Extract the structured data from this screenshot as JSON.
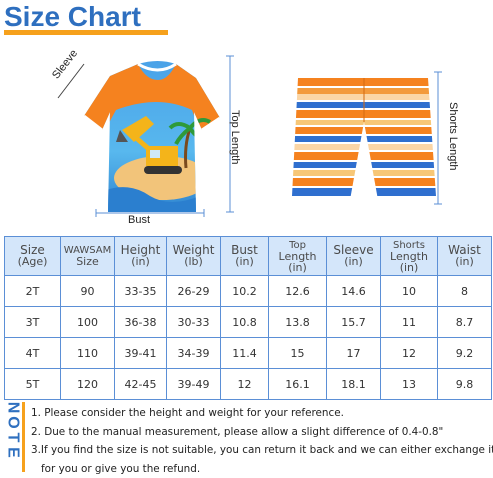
{
  "title": "Size Chart",
  "labels": {
    "sleeve": "Sleeve",
    "top_length": "Top Length",
    "bust": "Bust",
    "shorts_length": "Shorts Length"
  },
  "table": {
    "headers": [
      {
        "l1": "Size",
        "l2": "(Age)"
      },
      {
        "l1": "WAWSAM",
        "l2": "Size"
      },
      {
        "l1": "Height",
        "l2": "(in)"
      },
      {
        "l1": "Weight",
        "l2": "(lb)"
      },
      {
        "l1": "Bust",
        "l2": "(in)"
      },
      {
        "l1": "Top",
        "l2": "Length",
        "l3": "(in)"
      },
      {
        "l1": "Sleeve",
        "l2": "(in)"
      },
      {
        "l1": "Shorts",
        "l2": "Length",
        "l3": "(in)"
      },
      {
        "l1": "Waist",
        "l2": "(in)"
      }
    ],
    "rows": [
      [
        "2T",
        "90",
        "33-35",
        "26-29",
        "10.2",
        "12.6",
        "14.6",
        "10",
        "8"
      ],
      [
        "3T",
        "100",
        "36-38",
        "30-33",
        "10.8",
        "13.8",
        "15.7",
        "11",
        "8.7"
      ],
      [
        "4T",
        "110",
        "39-41",
        "34-39",
        "11.4",
        "15",
        "17",
        "12",
        "9.2"
      ],
      [
        "5T",
        "120",
        "42-45",
        "39-49",
        "12",
        "16.1",
        "18.1",
        "13",
        "9.8"
      ]
    ]
  },
  "note": {
    "label": [
      "N",
      "O",
      "T",
      "E"
    ],
    "lines": [
      "1. Please consider the height and weight for your  reference.",
      "2. Due to the manual measurement, please allow a slight difference of 0.4-0.8\"",
      "3.If you find the size is not suitable, you can return it back and we can either exchange it",
      "for you or give you the refund."
    ]
  },
  "colors": {
    "title": "#2e6fbf",
    "accent": "#f6a11c",
    "table_border": "#5b8fd6",
    "header_bg": "#d4e6fa"
  }
}
